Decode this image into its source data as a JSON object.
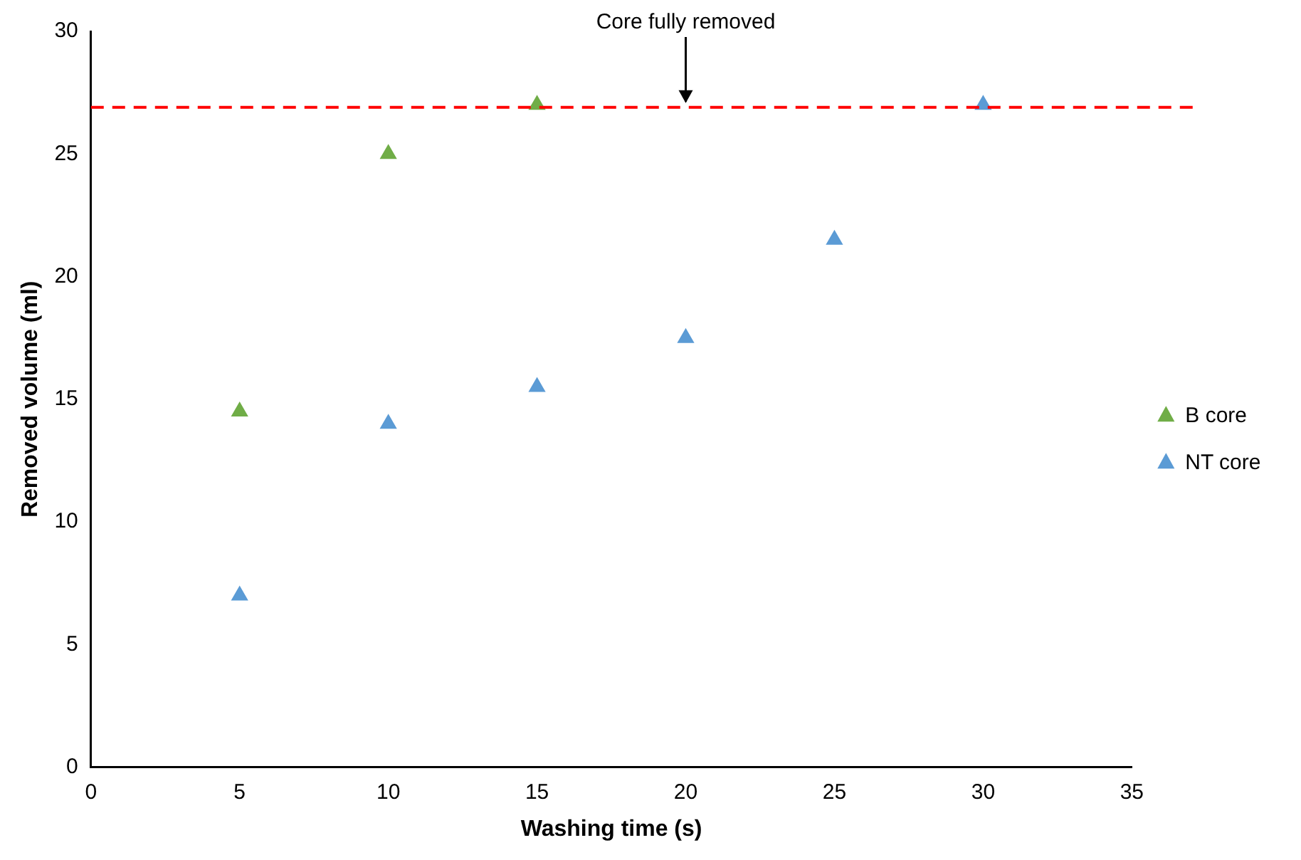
{
  "chart_data": {
    "type": "scatter",
    "xlabel": "Washing time (s)",
    "ylabel": "Removed volume (ml)",
    "xlim": [
      0,
      35
    ],
    "xticks": [
      0,
      5,
      10,
      15,
      20,
      25,
      30,
      35
    ],
    "ylim": [
      0,
      30
    ],
    "yticks": [
      0,
      5,
      10,
      15,
      20,
      25,
      30
    ],
    "grid": false,
    "legend": "right",
    "marker": "triangle",
    "series": [
      {
        "name": "B core",
        "color": "#70ad47",
        "x": [
          5,
          10,
          15
        ],
        "values": [
          14.5,
          25,
          27
        ]
      },
      {
        "name": "NT core",
        "color": "#5b9bd5",
        "x": [
          5,
          10,
          15,
          20,
          25,
          30
        ],
        "values": [
          7,
          14,
          15.5,
          17.5,
          21.5,
          27
        ]
      }
    ],
    "ref_lines": [
      {
        "axis": "y",
        "value": 26.9,
        "color": "#ff0000",
        "line_style": "dashed"
      }
    ],
    "annotations": [
      {
        "text": "Core fully removed",
        "x": 20,
        "y": 26.9
      }
    ]
  }
}
